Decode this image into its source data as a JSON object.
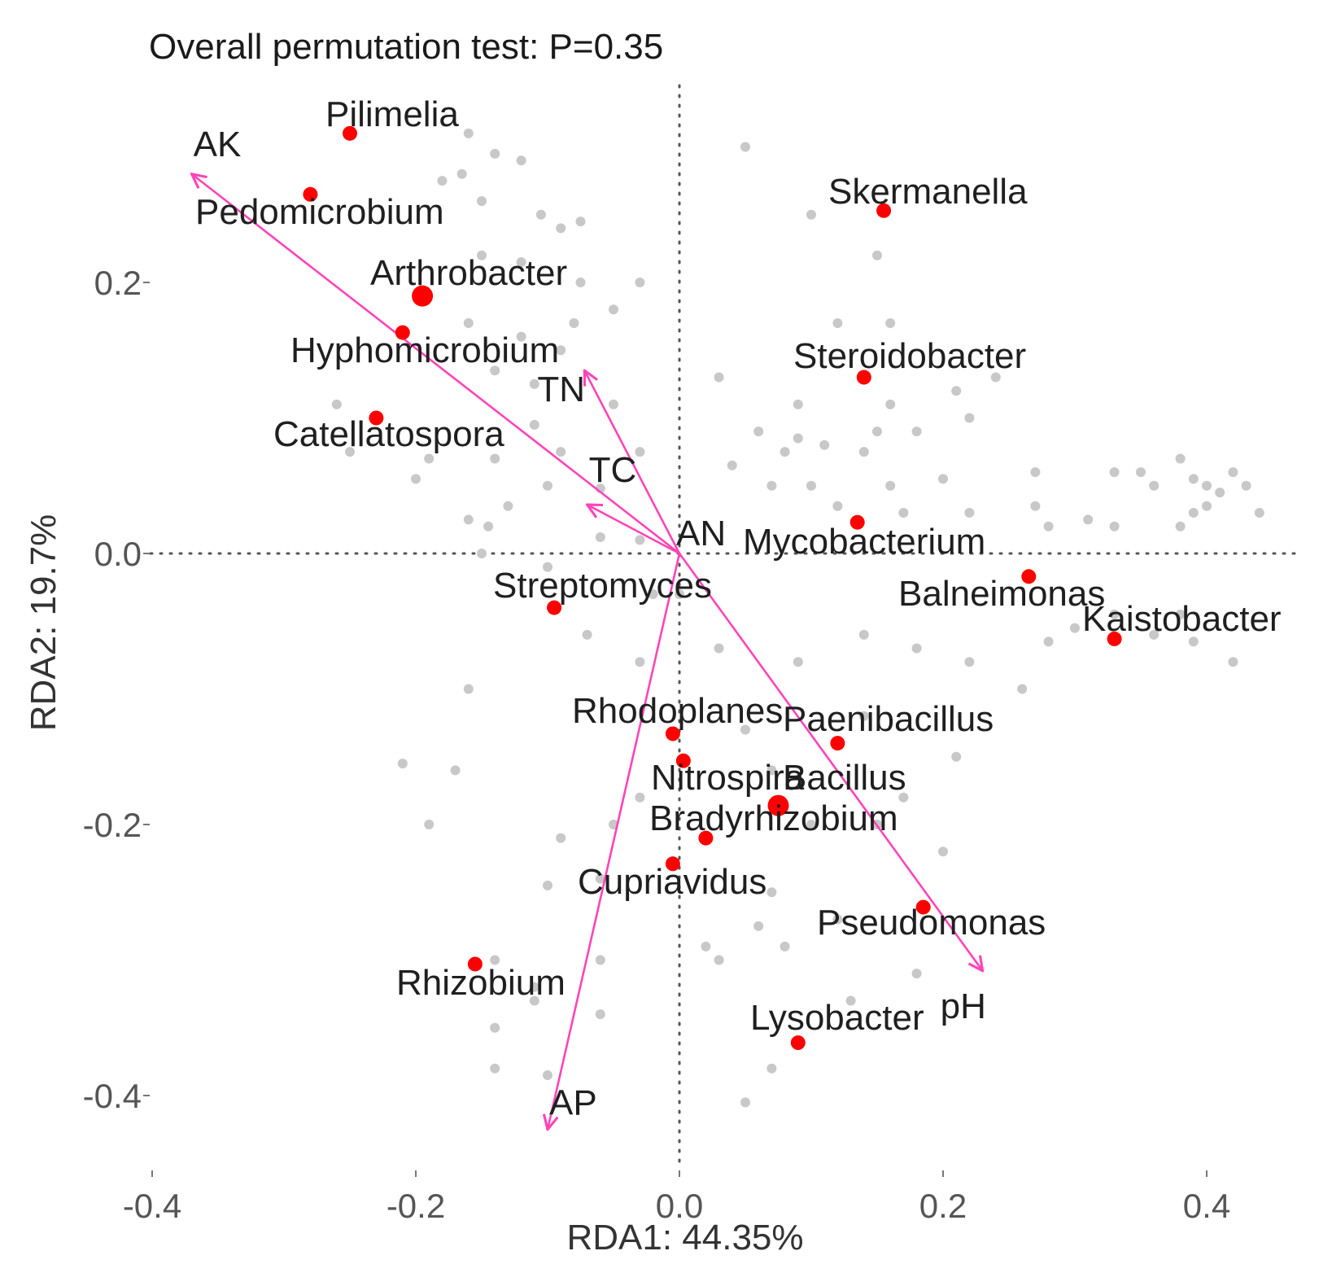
{
  "chart_data": {
    "type": "scatter",
    "title": "Overall permutation test: P=0.35",
    "xlabel": "RDA1: 44.35%",
    "ylabel": "RDA2: 19.7%",
    "xlim": [
      -0.4,
      0.5
    ],
    "ylim": [
      -0.44,
      0.35
    ],
    "xticks": [
      {
        "value": -0.4,
        "label": "-0.4"
      },
      {
        "value": -0.2,
        "label": "-0.2"
      },
      {
        "value": 0.0,
        "label": "0.0"
      },
      {
        "value": 0.2,
        "label": "0.2"
      },
      {
        "value": 0.4,
        "label": "0.4"
      }
    ],
    "yticks": [
      {
        "value": 0.2,
        "label": "0.2"
      },
      {
        "value": 0.0,
        "label": "0.0"
      },
      {
        "value": -0.2,
        "label": "-0.2"
      },
      {
        "value": -0.4,
        "label": "-0.4"
      }
    ],
    "reference_lines": {
      "x": 0,
      "y": 0,
      "style": "dotted"
    },
    "colors": {
      "highlight": "#ff0000",
      "background_points": "#c8c8c8",
      "arrows": "#ff44b8",
      "text": "#1f1f1f"
    },
    "highlighted_genera": [
      {
        "name": "Pilimelia",
        "x": -0.25,
        "y": 0.31,
        "size": "small"
      },
      {
        "name": "Pedomicrobium",
        "x": -0.28,
        "y": 0.265,
        "size": "small"
      },
      {
        "name": "Arthrobacter",
        "x": -0.195,
        "y": 0.19,
        "size": "large"
      },
      {
        "name": "Hyphomicrobium",
        "x": -0.21,
        "y": 0.163,
        "size": "small"
      },
      {
        "name": "Catellatospora",
        "x": -0.23,
        "y": 0.1,
        "size": "small"
      },
      {
        "name": "Streptomyces",
        "x": -0.095,
        "y": -0.04,
        "size": "small"
      },
      {
        "name": "Skermanella",
        "x": 0.155,
        "y": 0.253,
        "size": "small"
      },
      {
        "name": "Steroidobacter",
        "x": 0.14,
        "y": 0.13,
        "size": "small"
      },
      {
        "name": "Mycobacterium",
        "x": 0.135,
        "y": 0.023,
        "size": "small"
      },
      {
        "name": "Balneimonas",
        "x": 0.265,
        "y": -0.017,
        "size": "small"
      },
      {
        "name": "Kaistobacter",
        "x": 0.33,
        "y": -0.063,
        "size": "small"
      },
      {
        "name": "Rhodoplanes",
        "x": -0.005,
        "y": -0.133,
        "size": "small"
      },
      {
        "name": "Paenibacillus",
        "x": 0.12,
        "y": -0.14,
        "size": "small"
      },
      {
        "name": "Nitrospira",
        "x": 0.003,
        "y": -0.153,
        "size": "small"
      },
      {
        "name": "Bacillus",
        "x": 0.075,
        "y": -0.186,
        "size": "large"
      },
      {
        "name": "Bradyrhizobium",
        "x": 0.02,
        "y": -0.21,
        "size": "small"
      },
      {
        "name": "Cupriavidus",
        "x": -0.005,
        "y": -0.229,
        "size": "small"
      },
      {
        "name": "Pseudomonas",
        "x": 0.185,
        "y": -0.261,
        "size": "small"
      },
      {
        "name": "Rhizobium",
        "x": -0.155,
        "y": -0.303,
        "size": "small"
      },
      {
        "name": "Lysobacter",
        "x": 0.09,
        "y": -0.361,
        "size": "small"
      }
    ],
    "environmental_vectors": [
      {
        "name": "AK",
        "x": -0.37,
        "y": 0.28
      },
      {
        "name": "TN",
        "x": -0.072,
        "y": 0.135
      },
      {
        "name": "TC",
        "x": -0.07,
        "y": 0.036
      },
      {
        "name": "AN",
        "x": 0.0,
        "y": 0.0
      },
      {
        "name": "pH",
        "x": 0.23,
        "y": -0.308
      },
      {
        "name": "AP",
        "x": -0.1,
        "y": -0.425
      }
    ],
    "other_genera_points": [
      [
        -0.16,
        0.31
      ],
      [
        -0.14,
        0.295
      ],
      [
        -0.165,
        0.28
      ],
      [
        -0.12,
        0.29
      ],
      [
        -0.18,
        0.275
      ],
      [
        -0.15,
        0.26
      ],
      [
        -0.105,
        0.25
      ],
      [
        -0.09,
        0.24
      ],
      [
        -0.075,
        0.245
      ],
      [
        -0.12,
        0.215
      ],
      [
        -0.075,
        0.2
      ],
      [
        -0.03,
        0.2
      ],
      [
        -0.15,
        0.22
      ],
      [
        -0.16,
        0.17
      ],
      [
        -0.08,
        0.17
      ],
      [
        -0.05,
        0.18
      ],
      [
        -0.12,
        0.16
      ],
      [
        -0.09,
        0.15
      ],
      [
        -0.14,
        0.135
      ],
      [
        -0.11,
        0.125
      ],
      [
        -0.05,
        0.11
      ],
      [
        -0.26,
        0.11
      ],
      [
        -0.11,
        0.095
      ],
      [
        -0.25,
        0.075
      ],
      [
        -0.19,
        0.07
      ],
      [
        -0.14,
        0.07
      ],
      [
        -0.09,
        0.075
      ],
      [
        -0.03,
        0.075
      ],
      [
        -0.1,
        0.05
      ],
      [
        -0.06,
        0.048
      ],
      [
        -0.2,
        0.055
      ],
      [
        -0.13,
        0.035
      ],
      [
        -0.145,
        0.02
      ],
      [
        -0.06,
        0.012
      ],
      [
        -0.16,
        0.025
      ],
      [
        -0.03,
        0.01
      ],
      [
        -0.15,
        0.0
      ],
      [
        -0.1,
        -0.01
      ],
      [
        -0.02,
        -0.03
      ],
      [
        -0.07,
        -0.06
      ],
      [
        -0.16,
        -0.1
      ],
      [
        -0.03,
        -0.08
      ],
      [
        -0.21,
        -0.155
      ],
      [
        -0.17,
        -0.16
      ],
      [
        -0.19,
        -0.2
      ],
      [
        -0.09,
        -0.21
      ],
      [
        -0.05,
        -0.2
      ],
      [
        -0.03,
        -0.18
      ],
      [
        -0.1,
        -0.245
      ],
      [
        -0.06,
        -0.24
      ],
      [
        -0.14,
        -0.3
      ],
      [
        -0.11,
        -0.32
      ],
      [
        -0.14,
        -0.35
      ],
      [
        -0.11,
        -0.33
      ],
      [
        -0.06,
        -0.3
      ],
      [
        -0.06,
        -0.34
      ],
      [
        -0.14,
        -0.38
      ],
      [
        -0.1,
        -0.385
      ],
      [
        0.05,
        0.3
      ],
      [
        0.1,
        0.25
      ],
      [
        0.15,
        0.22
      ],
      [
        0.16,
        0.17
      ],
      [
        0.03,
        0.13
      ],
      [
        0.12,
        0.17
      ],
      [
        0.21,
        0.12
      ],
      [
        0.24,
        0.13
      ],
      [
        0.09,
        0.11
      ],
      [
        0.16,
        0.11
      ],
      [
        0.06,
        0.09
      ],
      [
        0.09,
        0.085
      ],
      [
        0.15,
        0.09
      ],
      [
        0.18,
        0.09
      ],
      [
        0.22,
        0.1
      ],
      [
        0.08,
        0.075
      ],
      [
        0.11,
        0.08
      ],
      [
        0.14,
        0.075
      ],
      [
        0.04,
        0.065
      ],
      [
        0.07,
        0.05
      ],
      [
        0.1,
        0.05
      ],
      [
        0.16,
        0.05
      ],
      [
        0.2,
        0.055
      ],
      [
        0.27,
        0.06
      ],
      [
        0.12,
        0.035
      ],
      [
        0.17,
        0.03
      ],
      [
        0.22,
        0.03
      ],
      [
        0.28,
        0.02
      ],
      [
        0.31,
        0.025
      ],
      [
        0.33,
        0.06
      ],
      [
        0.35,
        0.06
      ],
      [
        0.36,
        0.05
      ],
      [
        0.38,
        0.07
      ],
      [
        0.39,
        0.055
      ],
      [
        0.4,
        0.05
      ],
      [
        0.4,
        0.035
      ],
      [
        0.41,
        0.045
      ],
      [
        0.42,
        0.06
      ],
      [
        0.43,
        0.05
      ],
      [
        0.44,
        0.03
      ],
      [
        0.39,
        0.03
      ],
      [
        0.38,
        0.02
      ],
      [
        0.33,
        0.02
      ],
      [
        0.27,
        0.035
      ],
      [
        0.0,
        -0.03
      ],
      [
        0.03,
        -0.07
      ],
      [
        0.09,
        -0.08
      ],
      [
        0.14,
        -0.06
      ],
      [
        0.18,
        -0.07
      ],
      [
        0.22,
        -0.08
      ],
      [
        0.28,
        -0.065
      ],
      [
        0.3,
        -0.055
      ],
      [
        0.36,
        -0.06
      ],
      [
        0.39,
        -0.065
      ],
      [
        0.42,
        -0.08
      ],
      [
        0.38,
        -0.045
      ],
      [
        0.33,
        -0.045
      ],
      [
        0.26,
        -0.1
      ],
      [
        0.05,
        -0.13
      ],
      [
        0.14,
        -0.12
      ],
      [
        0.21,
        -0.15
      ],
      [
        0.17,
        -0.18
      ],
      [
        0.07,
        -0.16
      ],
      [
        0.1,
        -0.2
      ],
      [
        0.15,
        -0.2
      ],
      [
        0.2,
        -0.22
      ],
      [
        0.07,
        -0.25
      ],
      [
        0.12,
        -0.27
      ],
      [
        0.06,
        -0.275
      ],
      [
        0.08,
        -0.29
      ],
      [
        0.02,
        -0.29
      ],
      [
        0.03,
        -0.3
      ],
      [
        0.13,
        -0.33
      ],
      [
        0.07,
        -0.38
      ],
      [
        0.05,
        -0.405
      ],
      [
        0.18,
        -0.31
      ]
    ]
  }
}
